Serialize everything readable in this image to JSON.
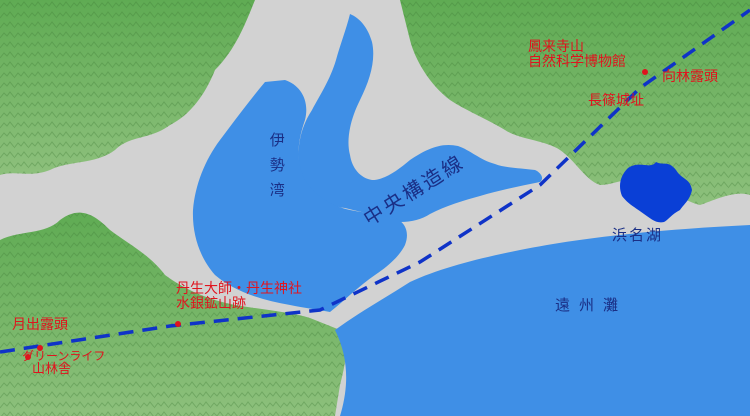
{
  "map": {
    "colors": {
      "sea": "#3f8fe6",
      "lake": "#0a3fd6",
      "lowland": "#d2d2d2",
      "mountain": "#67b35a",
      "fault_line": "#0f33c8",
      "poi": "#e0141e",
      "water_label": "#1a2f86"
    },
    "water_labels": {
      "ise_bay": "伊勢湾",
      "enshu_nada": "遠州灘",
      "hamana_lake": "浜名湖"
    },
    "fault": {
      "label": "中央構造線",
      "style": "dashed"
    },
    "places": [
      {
        "id": "horaiji",
        "lines": [
          "鳳来寺山",
          "自然科学博物館"
        ],
        "marker": true
      },
      {
        "id": "mukaibayashi",
        "lines": [
          "向林露頭"
        ],
        "marker": false
      },
      {
        "id": "nagashino",
        "lines": [
          "長篠城址"
        ],
        "marker": false
      },
      {
        "id": "nyu",
        "lines": [
          "丹生大師・丹生神社",
          "水銀鉱山跡"
        ],
        "marker": true
      },
      {
        "id": "tsukide",
        "lines": [
          "月出露頭"
        ],
        "marker": true
      },
      {
        "id": "green_life",
        "lines": [
          "グリーンライフ",
          "山林舎"
        ],
        "marker": true
      }
    ]
  }
}
